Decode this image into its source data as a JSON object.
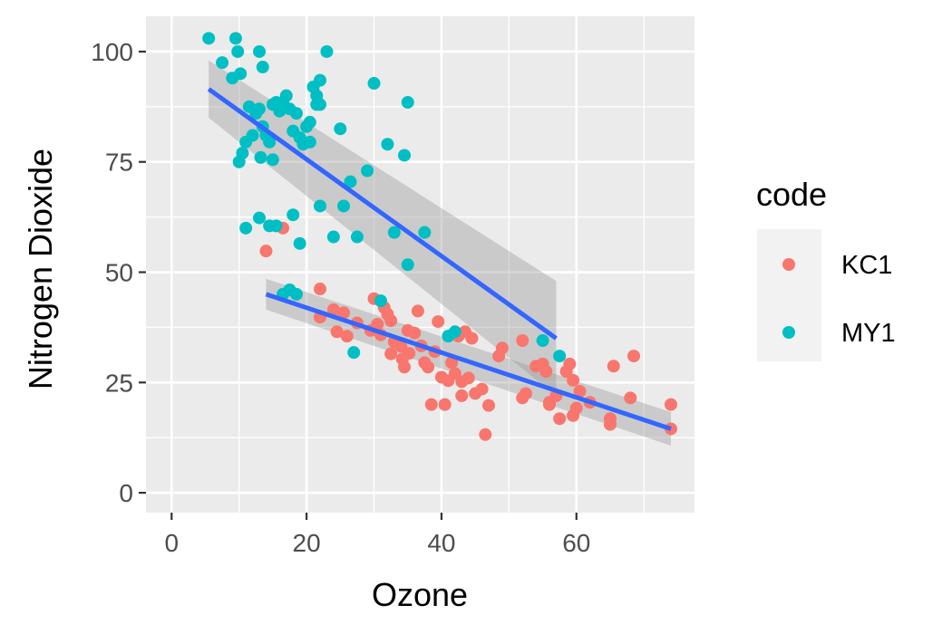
{
  "chart_data": {
    "type": "scatter",
    "title": "",
    "xlabel": "Ozone",
    "ylabel": "Nitrogen Dioxide",
    "xlim": [
      -3.8,
      77.5
    ],
    "ylim": [
      -4.5,
      108
    ],
    "x_ticks": [
      0,
      20,
      40,
      60
    ],
    "y_ticks": [
      0,
      25,
      50,
      75,
      100
    ],
    "x_tick_labels": [
      "0",
      "20",
      "40",
      "60"
    ],
    "y_tick_labels": [
      "0",
      "25",
      "50",
      "75",
      "100"
    ],
    "grid": true,
    "background": "#ebebeb",
    "legend": {
      "title": "code",
      "position": "right"
    },
    "series": [
      {
        "name": "KC1",
        "color": "#f8766d",
        "points": [
          [
            14.0,
            54.8
          ],
          [
            16.5,
            60.0
          ],
          [
            22.0,
            46.2
          ],
          [
            22.0,
            39.8
          ],
          [
            24.0,
            41.5
          ],
          [
            24.5,
            36.5
          ],
          [
            25.5,
            40.8
          ],
          [
            26.0,
            35.5
          ],
          [
            27.5,
            38.5
          ],
          [
            29.5,
            36.8
          ],
          [
            30.0,
            44.0
          ],
          [
            30.5,
            38.2
          ],
          [
            31.0,
            35.8
          ],
          [
            31.5,
            42.0
          ],
          [
            32.0,
            40.5
          ],
          [
            32.5,
            39.0
          ],
          [
            32.5,
            31.5
          ],
          [
            33.0,
            34.2
          ],
          [
            34.0,
            33.2
          ],
          [
            34.2,
            30.3
          ],
          [
            34.5,
            28.5
          ],
          [
            35.0,
            36.8
          ],
          [
            35.2,
            31.6
          ],
          [
            36.0,
            36.2
          ],
          [
            36.5,
            41.2
          ],
          [
            37.0,
            33.3
          ],
          [
            37.5,
            29.5
          ],
          [
            38.0,
            28.5
          ],
          [
            38.5,
            20.0
          ],
          [
            39.0,
            32.0
          ],
          [
            39.5,
            38.8
          ],
          [
            40.0,
            26.2
          ],
          [
            40.5,
            20.0
          ],
          [
            41.0,
            25.4
          ],
          [
            41.5,
            29.5
          ],
          [
            42.0,
            27.0
          ],
          [
            42.5,
            35.5
          ],
          [
            43.0,
            22.0
          ],
          [
            43.0,
            25.2
          ],
          [
            43.5,
            36.5
          ],
          [
            44.0,
            26.0
          ],
          [
            44.5,
            35.0
          ],
          [
            45.0,
            22.5
          ],
          [
            46.0,
            23.5
          ],
          [
            46.5,
            13.2
          ],
          [
            47.0,
            19.8
          ],
          [
            48.5,
            31.0
          ],
          [
            49.0,
            32.8
          ],
          [
            52.0,
            34.5
          ],
          [
            52.0,
            21.5
          ],
          [
            52.5,
            22.5
          ],
          [
            54.0,
            28.7
          ],
          [
            55.0,
            29.2
          ],
          [
            55.5,
            27.5
          ],
          [
            56.0,
            20.5
          ],
          [
            56.0,
            20.0
          ],
          [
            57.0,
            22.0
          ],
          [
            57.5,
            16.8
          ],
          [
            58.5,
            27.5
          ],
          [
            59.0,
            29.2
          ],
          [
            59.5,
            17.5
          ],
          [
            59.5,
            25.5
          ],
          [
            60.0,
            19.2
          ],
          [
            60.5,
            23.0
          ],
          [
            62.0,
            20.5
          ],
          [
            65.0,
            15.5
          ],
          [
            65.0,
            16.8
          ],
          [
            65.5,
            28.7
          ],
          [
            68.0,
            21.5
          ],
          [
            68.5,
            31.0
          ],
          [
            74.0,
            20.0
          ],
          [
            74.0,
            14.5
          ]
        ],
        "trend": {
          "x": [
            14.0,
            74.0
          ],
          "y": [
            45.0,
            14.5
          ],
          "band_half_width": [
            3.5,
            3.8
          ]
        }
      },
      {
        "name": "MY1",
        "color": "#00bfc4",
        "points": [
          [
            5.5,
            103.0
          ],
          [
            7.5,
            97.5
          ],
          [
            9.5,
            103.0
          ],
          [
            9.0,
            94.0
          ],
          [
            9.8,
            100.0
          ],
          [
            10.2,
            95.0
          ],
          [
            10.0,
            75.0
          ],
          [
            10.5,
            77.0
          ],
          [
            11.0,
            79.5
          ],
          [
            11.5,
            87.5
          ],
          [
            12.0,
            81.0
          ],
          [
            12.5,
            86.0
          ],
          [
            13.0,
            100.0
          ],
          [
            13.5,
            96.5
          ],
          [
            13.0,
            87.0
          ],
          [
            13.2,
            76.0
          ],
          [
            13.5,
            83.0
          ],
          [
            14.0,
            81.0
          ],
          [
            14.5,
            79.5
          ],
          [
            15.0,
            75.5
          ],
          [
            15.0,
            88.0
          ],
          [
            15.5,
            88.5
          ],
          [
            16.0,
            86.5
          ],
          [
            16.5,
            88.5
          ],
          [
            17.0,
            90.0
          ],
          [
            17.5,
            87.0
          ],
          [
            18.0,
            82.0
          ],
          [
            18.5,
            86.0
          ],
          [
            19.0,
            80.5
          ],
          [
            19.5,
            79.0
          ],
          [
            20.0,
            83.0
          ],
          [
            20.5,
            84.0
          ],
          [
            20.5,
            79.5
          ],
          [
            21.0,
            92.0
          ],
          [
            21.5,
            88.0
          ],
          [
            21.5,
            90.0
          ],
          [
            22.0,
            93.5
          ],
          [
            22.0,
            88.0
          ],
          [
            22.0,
            65.0
          ],
          [
            23.0,
            100.0
          ],
          [
            24.0,
            58.0
          ],
          [
            25.0,
            82.5
          ],
          [
            25.5,
            65.0
          ],
          [
            26.5,
            70.5
          ],
          [
            27.5,
            58.0
          ],
          [
            27.0,
            31.8
          ],
          [
            29.0,
            73.0
          ],
          [
            30.0,
            92.8
          ],
          [
            31.0,
            43.5
          ],
          [
            32.0,
            79.0
          ],
          [
            33.0,
            59.0
          ],
          [
            34.5,
            76.5
          ],
          [
            35.0,
            88.5
          ],
          [
            35.0,
            51.7
          ],
          [
            37.5,
            59.0
          ],
          [
            11.0,
            60.0
          ],
          [
            13.0,
            62.3
          ],
          [
            14.5,
            60.5
          ],
          [
            15.5,
            60.5
          ],
          [
            16.5,
            45.0
          ],
          [
            17.5,
            46.0
          ],
          [
            18.0,
            63.0
          ],
          [
            18.5,
            45.0
          ],
          [
            19.0,
            56.5
          ],
          [
            41.0,
            35.5
          ],
          [
            42.0,
            36.5
          ],
          [
            55.0,
            34.5
          ],
          [
            57.5,
            31.0
          ]
        ],
        "trend": {
          "x": [
            5.5,
            57.0
          ],
          "y": [
            91.5,
            35.0
          ],
          "band_half_width": [
            6.5,
            13.0
          ]
        }
      }
    ]
  }
}
